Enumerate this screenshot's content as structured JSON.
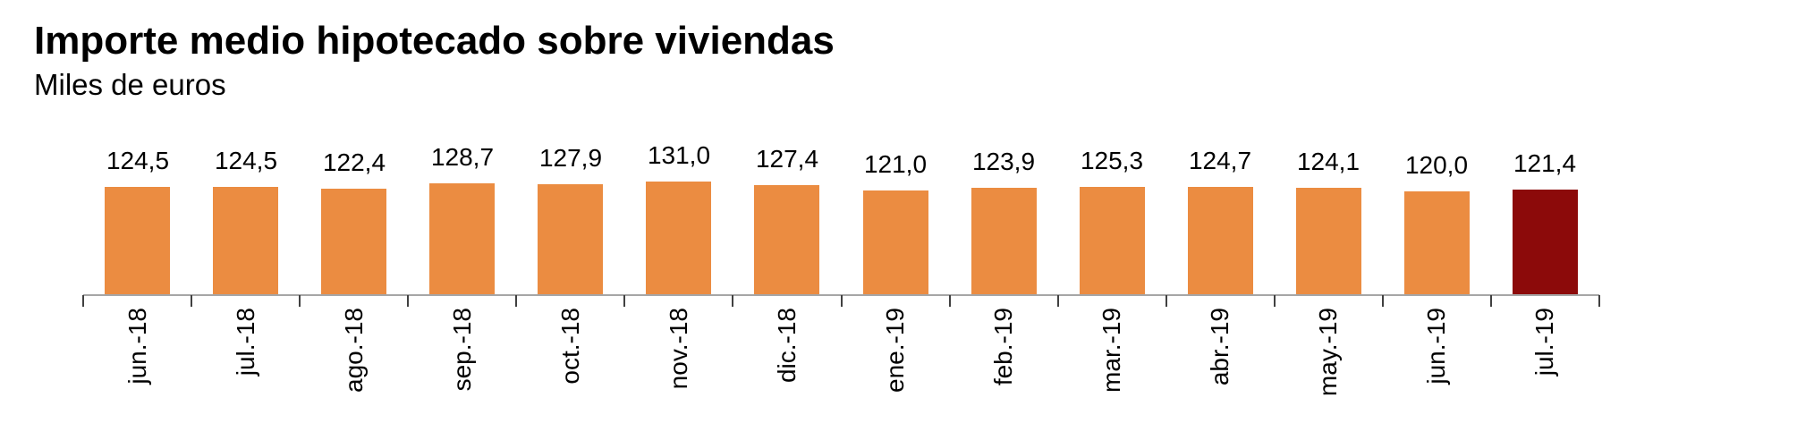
{
  "header": {
    "title": "Importe medio hipotecado sobre viviendas",
    "subtitle": "Miles de euros"
  },
  "chart_data": {
    "type": "bar",
    "title": "Importe medio hipotecado sobre viviendas",
    "subtitle": "Miles de euros",
    "ylabel": "Miles de euros",
    "xlabel": "",
    "categories": [
      "jun.-18",
      "jul.-18",
      "ago.-18",
      "sep.-18",
      "oct.-18",
      "nov.-18",
      "dic.-18",
      "ene.-19",
      "feb.-19",
      "mar.-19",
      "abr.-19",
      "may.-19",
      "jun.-19",
      "jul.-19"
    ],
    "values": [
      124.5,
      124.5,
      122.4,
      128.7,
      127.9,
      131.0,
      127.4,
      121.0,
      123.9,
      125.3,
      124.7,
      124.1,
      120.0,
      121.4
    ],
    "value_labels": [
      "124,5",
      "124,5",
      "122,4",
      "128,7",
      "127,9",
      "131,0",
      "127,4",
      "121,0",
      "123,9",
      "125,3",
      "124,7",
      "124,1",
      "120,0",
      "121,4"
    ],
    "highlight_index": 13,
    "data_labels": true,
    "grid": false,
    "legend": null,
    "ylim": [
      0,
      140
    ],
    "colors": {
      "bar": "#EB8C41",
      "highlight": "#8C0A0A",
      "axis_line": "#A6A6A6",
      "tick": "#404040",
      "text": "#000000"
    }
  }
}
